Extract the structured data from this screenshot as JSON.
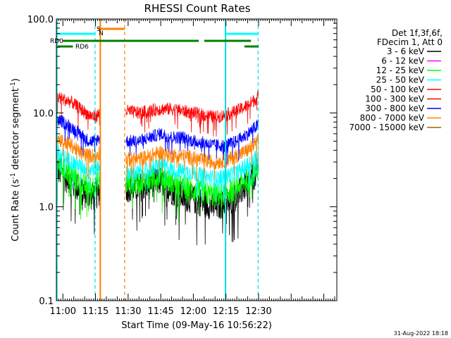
{
  "chart_data": {
    "type": "line",
    "title": "RHESSI Count Rates",
    "xlabel": "Start Time (09-May-16 10:56:22)",
    "ylabel": "Count Rate (s⁻¹ detector segment⁻¹)",
    "ylabel_main": "Count Rate (s",
    "ylabel_sup1": "-1",
    "ylabel_mid": " detector segment",
    "ylabel_sup2": "-1",
    "ylabel_end": ")",
    "yscale": "log",
    "ylim": [
      0.1,
      100
    ],
    "xlim_min": [
      57,
      186
    ],
    "x_ticks": [
      "11:00",
      "11:15",
      "11:30",
      "11:45",
      "12:00",
      "12:15",
      "12:30"
    ],
    "x_tick_min": [
      60,
      75,
      90,
      105,
      120,
      135,
      150
    ],
    "y_ticks": [
      "0.1",
      "1.0",
      "10.0",
      "100.0"
    ],
    "y_tick_values": [
      0.1,
      1,
      10,
      100
    ],
    "gap_min": [
      77,
      89
    ],
    "legend": {
      "header1": "Det 1f,3f,6f,",
      "header2": "FDecim 1, Att 0",
      "entries": [
        {
          "label": "3 - 6 keV",
          "color": "#000000"
        },
        {
          "label": "6 - 12 keV",
          "color": "#ff00ff"
        },
        {
          "label": "12 - 25 keV",
          "color": "#00ff00"
        },
        {
          "label": "25 - 50 keV",
          "color": "#00ffff"
        },
        {
          "label": "50 - 100 keV",
          "color": "#ff0000"
        },
        {
          "label": "100 - 300 keV",
          "color": "#ff0000"
        },
        {
          "label": "300 - 800 keV",
          "color": "#0000ff"
        },
        {
          "label": "800 - 7000 keV",
          "color": "#ff8000"
        },
        {
          "label": "7000 - 15000 keV",
          "color": "#996600"
        }
      ]
    },
    "series": [
      {
        "color": "#ff0000",
        "points": [
          [
            57,
            15
          ],
          [
            60,
            14
          ],
          [
            64,
            13
          ],
          [
            68,
            11
          ],
          [
            72,
            9.5
          ],
          [
            75,
            9
          ],
          [
            77,
            10
          ],
          [
            89,
            10.5
          ],
          [
            95,
            10
          ],
          [
            100,
            10.5
          ],
          [
            105,
            11
          ],
          [
            110,
            11
          ],
          [
            115,
            10.5
          ],
          [
            120,
            10
          ],
          [
            125,
            9.5
          ],
          [
            130,
            9
          ],
          [
            135,
            9.5
          ],
          [
            140,
            10.5
          ],
          [
            145,
            12
          ],
          [
            150,
            15
          ]
        ],
        "amp": 0.07
      },
      {
        "color": "#0000ff",
        "points": [
          [
            57,
            8.5
          ],
          [
            60,
            8
          ],
          [
            64,
            7
          ],
          [
            68,
            6
          ],
          [
            72,
            5
          ],
          [
            75,
            5
          ],
          [
            77,
            5.5
          ],
          [
            89,
            5
          ],
          [
            95,
            5
          ],
          [
            100,
            5.5
          ],
          [
            105,
            6
          ],
          [
            110,
            5.5
          ],
          [
            115,
            5.5
          ],
          [
            120,
            5
          ],
          [
            125,
            4.8
          ],
          [
            130,
            4.5
          ],
          [
            135,
            4.5
          ],
          [
            140,
            5
          ],
          [
            145,
            6
          ],
          [
            150,
            7.5
          ]
        ],
        "amp": 0.07
      },
      {
        "color": "#ff8000",
        "points": [
          [
            57,
            5.5
          ],
          [
            60,
            5
          ],
          [
            64,
            4.5
          ],
          [
            68,
            3.8
          ],
          [
            72,
            3.5
          ],
          [
            75,
            3.5
          ],
          [
            77,
            3.8
          ],
          [
            89,
            3.2
          ],
          [
            95,
            3.2
          ],
          [
            100,
            3.5
          ],
          [
            105,
            3.8
          ],
          [
            110,
            3.5
          ],
          [
            115,
            3.5
          ],
          [
            120,
            3.3
          ],
          [
            125,
            3.1
          ],
          [
            130,
            3
          ],
          [
            135,
            3.1
          ],
          [
            140,
            3.5
          ],
          [
            145,
            4
          ],
          [
            150,
            5
          ]
        ],
        "amp": 0.08
      },
      {
        "color": "#00ffff",
        "points": [
          [
            57,
            3.8
          ],
          [
            60,
            3.5
          ],
          [
            64,
            3
          ],
          [
            68,
            2.7
          ],
          [
            72,
            2.5
          ],
          [
            75,
            2.6
          ],
          [
            77,
            2.8
          ],
          [
            89,
            2.3
          ],
          [
            95,
            2.3
          ],
          [
            100,
            2.5
          ],
          [
            105,
            2.8
          ],
          [
            110,
            2.5
          ],
          [
            115,
            2.4
          ],
          [
            120,
            2.3
          ],
          [
            125,
            2.1
          ],
          [
            130,
            2
          ],
          [
            135,
            2.1
          ],
          [
            140,
            2.3
          ],
          [
            145,
            2.8
          ],
          [
            150,
            3.5
          ]
        ],
        "amp": 0.09
      },
      {
        "color": "#00ff00",
        "points": [
          [
            57,
            3
          ],
          [
            60,
            2.6
          ],
          [
            64,
            2.2
          ],
          [
            68,
            1.8
          ],
          [
            72,
            1.6
          ],
          [
            75,
            1.7
          ],
          [
            77,
            1.9
          ],
          [
            89,
            1.8
          ],
          [
            95,
            1.8
          ],
          [
            100,
            2
          ],
          [
            105,
            2.2
          ],
          [
            110,
            1.8
          ],
          [
            115,
            1.6
          ],
          [
            120,
            1.5
          ],
          [
            125,
            1.4
          ],
          [
            130,
            1.3
          ],
          [
            135,
            1.4
          ],
          [
            140,
            1.6
          ],
          [
            145,
            2
          ],
          [
            150,
            2.6
          ]
        ],
        "amp": 0.13
      },
      {
        "color": "#000000",
        "points": [
          [
            57,
            2.6
          ],
          [
            60,
            2.2
          ],
          [
            64,
            1.8
          ],
          [
            68,
            1.5
          ],
          [
            72,
            1.3
          ],
          [
            75,
            1.3
          ],
          [
            77,
            1.5
          ],
          [
            89,
            1.6
          ],
          [
            95,
            1.6
          ],
          [
            100,
            1.8
          ],
          [
            105,
            1.9
          ],
          [
            110,
            1.5
          ],
          [
            115,
            1.3
          ],
          [
            120,
            1.2
          ],
          [
            125,
            1.1
          ],
          [
            130,
            1
          ],
          [
            135,
            1.1
          ],
          [
            140,
            1.3
          ],
          [
            145,
            1.8
          ],
          [
            150,
            2.4
          ]
        ],
        "amp": 0.16
      }
    ],
    "vlines": [
      {
        "min": 57.2,
        "color": "#00dddd",
        "style": "solid"
      },
      {
        "min": 74.8,
        "color": "#00dddd",
        "style": "dashed"
      },
      {
        "min": 77.2,
        "color": "#ff8000",
        "style": "solid"
      },
      {
        "min": 88.4,
        "color": "#ff8000",
        "style": "dashed"
      },
      {
        "min": 134.8,
        "color": "#00dddd",
        "style": "solid"
      },
      {
        "min": 149.8,
        "color": "#00dddd",
        "style": "dashed"
      }
    ],
    "indicators": {
      "saa_label": "S",
      "night_label": "N",
      "rd0_label": "RD0",
      "rd6_label": "RD6",
      "night_segments": [
        [
          57,
          74.8
        ],
        [
          134.8,
          149.8
        ]
      ],
      "saa_segments": [
        [
          76.2,
          88.4
        ]
      ],
      "rd0_segments": [
        [
          60,
          122.5
        ],
        [
          125,
          146.5
        ]
      ],
      "rd6_segments": [
        [
          57.5,
          64.6
        ],
        [
          143.5,
          150
        ]
      ]
    }
  },
  "footer": {
    "date": "31-Aug-2022 18:18"
  }
}
